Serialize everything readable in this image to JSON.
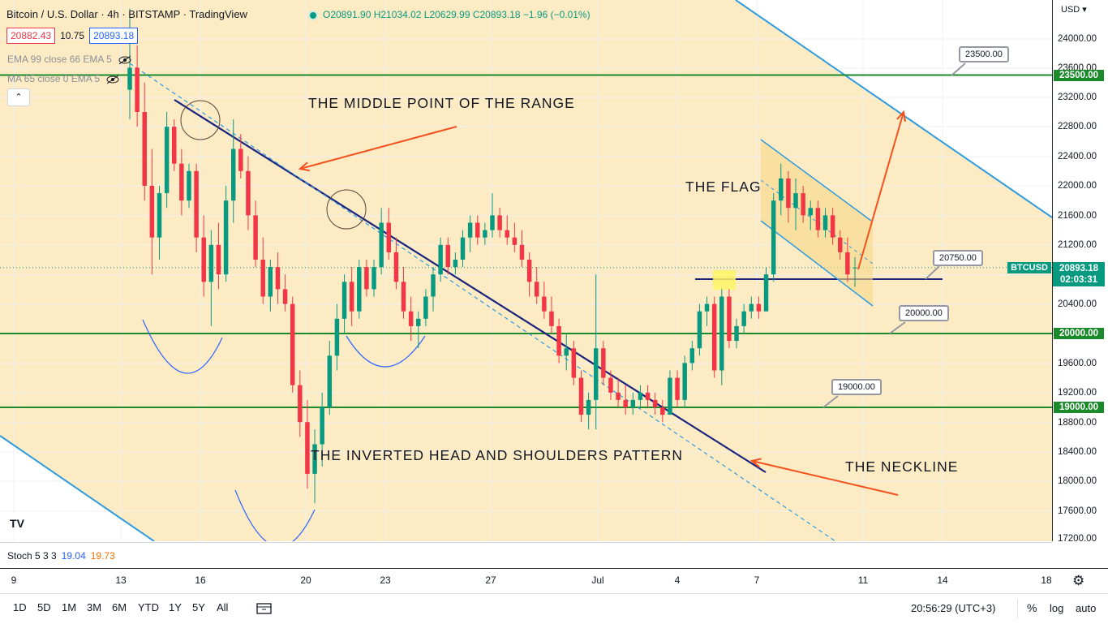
{
  "header": {
    "title": "Bitcoin / U.S. Dollar · 4h · BITSTAMP · TradingView",
    "ohlc": "O20891.90 H21034.02 L20629.99 C20893.18 −1.96 (−0.01%)"
  },
  "bid_ask": {
    "bid": "20882.43",
    "spread": "10.75",
    "ask": "20893.18"
  },
  "indicators": [
    {
      "label": "EMA 99 close 66 EMA 5"
    },
    {
      "label": "MA 65 close 0 EMA 5"
    }
  ],
  "collapse_icon": "chevron-up-icon",
  "annotations": {
    "middle_point": "THE MIDDLE POINT OF THE RANGE",
    "flag": "THE FLAG",
    "pattern": "THE INVERTED HEAD AND SHOULDERS PATTERN",
    "neckline": "THE NECKLINE"
  },
  "callouts": {
    "c23500": "23500.00",
    "c20750": "20750.00",
    "c20000": "20000.00",
    "c19000": "19000.00"
  },
  "price_scale": {
    "currency": "USD",
    "ticks": [
      "24000.00",
      "23600.00",
      "23200.00",
      "22800.00",
      "22400.00",
      "22000.00",
      "21600.00",
      "21200.00",
      "20400.00",
      "20000.00",
      "19600.00",
      "19200.00",
      "18800.00",
      "18400.00",
      "18000.00",
      "17600.00",
      "17200.00"
    ],
    "level_labels": [
      "23500.00",
      "20000.00",
      "19000.00"
    ],
    "symbol": "BTCUSD",
    "last_price": "20893.18",
    "countdown": "02:03:31"
  },
  "stoch": {
    "label": "Stoch 5 3 3",
    "k": "19.04",
    "d": "19.73"
  },
  "time_axis": {
    "ticks": [
      "9",
      "13",
      "16",
      "20",
      "23",
      "27",
      "Jul",
      "4",
      "7",
      "11",
      "14",
      "18"
    ]
  },
  "toolbar": {
    "ranges": [
      "1D",
      "5D",
      "1M",
      "3M",
      "6M",
      "YTD",
      "1Y",
      "5Y",
      "All"
    ],
    "compare_icon": "calendar-range-icon",
    "clock": "20:56:29 (UTC+3)",
    "percent": "%",
    "log": "log",
    "auto": "auto",
    "settings_icon": "gear-icon"
  },
  "colors": {
    "up": "#089981",
    "down": "#f23645",
    "channel_fill": "#fdebc4",
    "level_line": "#1b8a2b",
    "neckline": "#1a237e",
    "channel_line": "#2e9be0",
    "arrow": "#f4511e"
  },
  "chart_data": {
    "type": "candlestick",
    "symbol": "Bitcoin / U.S. Dollar",
    "interval": "4h",
    "exchange": "BITSTAMP",
    "y_range": [
      17100,
      24300
    ],
    "x_ticks": [
      "9",
      "13",
      "16",
      "20",
      "23",
      "27",
      "Jul",
      "4",
      "7",
      "11",
      "14",
      "18"
    ],
    "horizontal_levels": [
      23500,
      20750,
      20000,
      19000
    ],
    "last_price": 20893.18,
    "ohlc_last": {
      "open": 20891.9,
      "high": 21034.02,
      "low": 20629.99,
      "close": 20893.18,
      "change": -1.96,
      "change_pct": -0.01
    },
    "candles": [
      {
        "o": 23300,
        "h": 24400,
        "l": 22900,
        "c": 23600
      },
      {
        "o": 23600,
        "h": 23900,
        "l": 22800,
        "c": 23000
      },
      {
        "o": 23000,
        "h": 23400,
        "l": 21800,
        "c": 22000
      },
      {
        "o": 22000,
        "h": 22500,
        "l": 20800,
        "c": 21300
      },
      {
        "o": 21300,
        "h": 22000,
        "l": 21000,
        "c": 21900
      },
      {
        "o": 21900,
        "h": 23000,
        "l": 21700,
        "c": 22800
      },
      {
        "o": 22800,
        "h": 22900,
        "l": 22200,
        "c": 22300
      },
      {
        "o": 22300,
        "h": 22500,
        "l": 21600,
        "c": 21800
      },
      {
        "o": 21800,
        "h": 22300,
        "l": 21700,
        "c": 22200
      },
      {
        "o": 22200,
        "h": 22300,
        "l": 21100,
        "c": 21300
      },
      {
        "o": 21300,
        "h": 21600,
        "l": 20500,
        "c": 20700
      },
      {
        "o": 20700,
        "h": 21400,
        "l": 20100,
        "c": 21200
      },
      {
        "o": 21200,
        "h": 21500,
        "l": 20600,
        "c": 20800
      },
      {
        "o": 20800,
        "h": 22000,
        "l": 20700,
        "c": 21800
      },
      {
        "o": 21800,
        "h": 22900,
        "l": 21500,
        "c": 22500
      },
      {
        "o": 22500,
        "h": 22700,
        "l": 22100,
        "c": 22200
      },
      {
        "o": 22200,
        "h": 22400,
        "l": 21400,
        "c": 21600
      },
      {
        "o": 21600,
        "h": 21800,
        "l": 20900,
        "c": 21000
      },
      {
        "o": 21000,
        "h": 21300,
        "l": 20400,
        "c": 20500
      },
      {
        "o": 20500,
        "h": 21000,
        "l": 20300,
        "c": 20900
      },
      {
        "o": 20900,
        "h": 21100,
        "l": 20400,
        "c": 20600
      },
      {
        "o": 20600,
        "h": 20800,
        "l": 20300,
        "c": 20400
      },
      {
        "o": 20400,
        "h": 20500,
        "l": 19200,
        "c": 19300
      },
      {
        "o": 19300,
        "h": 19500,
        "l": 18600,
        "c": 18800
      },
      {
        "o": 18800,
        "h": 19100,
        "l": 17900,
        "c": 18100
      },
      {
        "o": 18100,
        "h": 18700,
        "l": 17700,
        "c": 18500
      },
      {
        "o": 18500,
        "h": 19200,
        "l": 18200,
        "c": 19000
      },
      {
        "o": 19000,
        "h": 19900,
        "l": 18900,
        "c": 19700
      },
      {
        "o": 19700,
        "h": 20400,
        "l": 19500,
        "c": 20200
      },
      {
        "o": 20200,
        "h": 20800,
        "l": 20000,
        "c": 20700
      },
      {
        "o": 20700,
        "h": 20900,
        "l": 20100,
        "c": 20300
      },
      {
        "o": 20300,
        "h": 21000,
        "l": 20200,
        "c": 20900
      },
      {
        "o": 20900,
        "h": 21000,
        "l": 20500,
        "c": 20600
      },
      {
        "o": 20600,
        "h": 21000,
        "l": 20500,
        "c": 20900
      },
      {
        "o": 20900,
        "h": 21700,
        "l": 20800,
        "c": 21500
      },
      {
        "o": 21500,
        "h": 21700,
        "l": 21000,
        "c": 21100
      },
      {
        "o": 21100,
        "h": 21300,
        "l": 20600,
        "c": 20700
      },
      {
        "o": 20700,
        "h": 20900,
        "l": 20200,
        "c": 20300
      },
      {
        "o": 20300,
        "h": 20500,
        "l": 19900,
        "c": 20100
      },
      {
        "o": 20100,
        "h": 20300,
        "l": 19800,
        "c": 20200
      },
      {
        "o": 20200,
        "h": 20600,
        "l": 20100,
        "c": 20500
      },
      {
        "o": 20500,
        "h": 20900,
        "l": 20300,
        "c": 20800
      },
      {
        "o": 20800,
        "h": 21300,
        "l": 20700,
        "c": 21200
      },
      {
        "o": 21200,
        "h": 21300,
        "l": 20800,
        "c": 20900
      },
      {
        "o": 20900,
        "h": 21100,
        "l": 20800,
        "c": 21000
      },
      {
        "o": 21000,
        "h": 21400,
        "l": 20900,
        "c": 21300
      },
      {
        "o": 21300,
        "h": 21600,
        "l": 21100,
        "c": 21500
      },
      {
        "o": 21500,
        "h": 21600,
        "l": 21200,
        "c": 21300
      },
      {
        "o": 21300,
        "h": 21500,
        "l": 21200,
        "c": 21400
      },
      {
        "o": 21400,
        "h": 21900,
        "l": 21300,
        "c": 21600
      },
      {
        "o": 21600,
        "h": 21700,
        "l": 21300,
        "c": 21400
      },
      {
        "o": 21400,
        "h": 21600,
        "l": 21200,
        "c": 21300
      },
      {
        "o": 21300,
        "h": 21500,
        "l": 21100,
        "c": 21200
      },
      {
        "o": 21200,
        "h": 21400,
        "l": 20900,
        "c": 21000
      },
      {
        "o": 21000,
        "h": 21100,
        "l": 20500,
        "c": 20700
      },
      {
        "o": 20700,
        "h": 20900,
        "l": 20400,
        "c": 20500
      },
      {
        "o": 20500,
        "h": 20700,
        "l": 20200,
        "c": 20300
      },
      {
        "o": 20300,
        "h": 20500,
        "l": 20000,
        "c": 20100
      },
      {
        "o": 20100,
        "h": 20200,
        "l": 19600,
        "c": 19700
      },
      {
        "o": 19700,
        "h": 20000,
        "l": 19500,
        "c": 19800
      },
      {
        "o": 19800,
        "h": 19900,
        "l": 19300,
        "c": 19400
      },
      {
        "o": 19400,
        "h": 19500,
        "l": 18800,
        "c": 18900
      },
      {
        "o": 18900,
        "h": 19200,
        "l": 18700,
        "c": 19100
      },
      {
        "o": 19100,
        "h": 20800,
        "l": 18700,
        "c": 19800
      },
      {
        "o": 19800,
        "h": 19900,
        "l": 19300,
        "c": 19400
      },
      {
        "o": 19400,
        "h": 19500,
        "l": 19100,
        "c": 19200
      },
      {
        "o": 19200,
        "h": 19400,
        "l": 19000,
        "c": 19100
      },
      {
        "o": 19100,
        "h": 19300,
        "l": 18900,
        "c": 19000
      },
      {
        "o": 19000,
        "h": 19200,
        "l": 18900,
        "c": 19100
      },
      {
        "o": 19100,
        "h": 19300,
        "l": 19000,
        "c": 19200
      },
      {
        "o": 19200,
        "h": 19300,
        "l": 19000,
        "c": 19100
      },
      {
        "o": 19100,
        "h": 19200,
        "l": 18900,
        "c": 19000
      },
      {
        "o": 19000,
        "h": 19100,
        "l": 18800,
        "c": 18900
      },
      {
        "o": 18900,
        "h": 19500,
        "l": 18900,
        "c": 19400
      },
      {
        "o": 19400,
        "h": 19500,
        "l": 19000,
        "c": 19100
      },
      {
        "o": 19100,
        "h": 19700,
        "l": 19000,
        "c": 19600
      },
      {
        "o": 19600,
        "h": 19900,
        "l": 19500,
        "c": 19800
      },
      {
        "o": 19800,
        "h": 20400,
        "l": 19700,
        "c": 20300
      },
      {
        "o": 20300,
        "h": 20500,
        "l": 20100,
        "c": 20400
      },
      {
        "o": 20400,
        "h": 20500,
        "l": 19400,
        "c": 19500
      },
      {
        "o": 19500,
        "h": 20600,
        "l": 19300,
        "c": 20500
      },
      {
        "o": 20500,
        "h": 20600,
        "l": 19800,
        "c": 19900
      },
      {
        "o": 19900,
        "h": 20200,
        "l": 19800,
        "c": 20100
      },
      {
        "o": 20100,
        "h": 20400,
        "l": 20000,
        "c": 20300
      },
      {
        "o": 20300,
        "h": 20500,
        "l": 20200,
        "c": 20400
      },
      {
        "o": 20400,
        "h": 20500,
        "l": 20200,
        "c": 20300
      },
      {
        "o": 20300,
        "h": 20900,
        "l": 20300,
        "c": 20800
      },
      {
        "o": 20800,
        "h": 21900,
        "l": 20700,
        "c": 21800
      },
      {
        "o": 21800,
        "h": 22300,
        "l": 21600,
        "c": 22100
      },
      {
        "o": 22100,
        "h": 22200,
        "l": 21500,
        "c": 21700
      },
      {
        "o": 21700,
        "h": 22100,
        "l": 21400,
        "c": 21900
      },
      {
        "o": 21900,
        "h": 22000,
        "l": 21500,
        "c": 21600
      },
      {
        "o": 21600,
        "h": 21800,
        "l": 21400,
        "c": 21700
      },
      {
        "o": 21700,
        "h": 21800,
        "l": 21300,
        "c": 21400
      },
      {
        "o": 21400,
        "h": 21700,
        "l": 21300,
        "c": 21600
      },
      {
        "o": 21600,
        "h": 21700,
        "l": 21200,
        "c": 21300
      },
      {
        "o": 21300,
        "h": 21400,
        "l": 21000,
        "c": 21100
      },
      {
        "o": 21100,
        "h": 21300,
        "l": 20700,
        "c": 20800
      },
      {
        "o": 20891.9,
        "h": 21034.02,
        "l": 20629.99,
        "c": 20893.18
      }
    ]
  }
}
